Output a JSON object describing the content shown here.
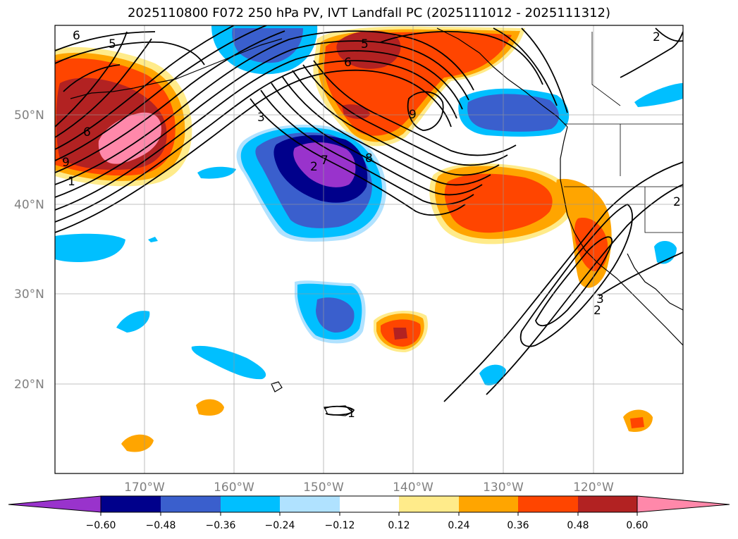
{
  "title": "2025110800 F072 250 hPa PV, IVT Landfall PC (2025111012 - 2025111312)",
  "map": {
    "lat_labels": [
      "50°N",
      "40°N",
      "30°N",
      "20°N"
    ],
    "lon_labels": [
      "170°W",
      "160°W",
      "150°W",
      "140°W",
      "130°W",
      "120°W"
    ],
    "contour_labels": [
      "6",
      "5",
      "6",
      "5",
      "6",
      "9",
      "1",
      "3",
      "7",
      "2",
      "8",
      "9",
      "3",
      "2",
      "2",
      "1",
      "2"
    ]
  },
  "colorbar": {
    "colors": [
      "#9933cc",
      "#00008b",
      "#3a5fcd",
      "#00bfff",
      "#b0e2ff",
      "#ffffff",
      "#ffeb8a",
      "#ffa500",
      "#ff4500",
      "#b22222",
      "#ff88aa"
    ],
    "ticks": [
      "−0.60",
      "−0.48",
      "−0.36",
      "−0.24",
      "−0.12",
      "0.12",
      "0.24",
      "0.36",
      "0.48",
      "0.60"
    ]
  },
  "palette": {
    "purple": "#9933cc",
    "navy": "#00008b",
    "royal": "#3a5fcd",
    "sky": "#00bfff",
    "lightblue": "#b0e2ff",
    "yellow": "#ffeb8a",
    "orange": "#ffa500",
    "redorange": "#ff4500",
    "firebrick": "#b22222",
    "pink": "#ff88aa"
  }
}
